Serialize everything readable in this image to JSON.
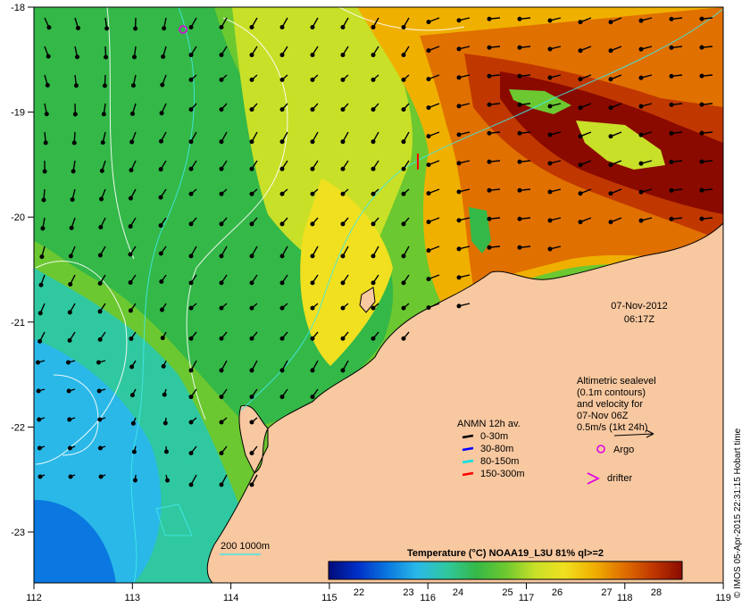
{
  "map": {
    "date": "07-Nov-2012",
    "time": "06:17Z",
    "lon_ticks": [
      "112",
      "113",
      "114",
      "115",
      "116",
      "117",
      "118",
      "119"
    ],
    "lat_ticks": [
      "-18",
      "-19",
      "-20",
      "-21",
      "-22",
      "-23"
    ],
    "altimetry_note": [
      "Altimetric sealevel",
      "(0.1m contours)",
      "and velocity for",
      "07-Nov 06Z",
      "0.5m/s (1kt 24h)"
    ],
    "argo_label": "Argo",
    "drifter_label": "drifter",
    "anmn_title": "ANMN 12h av.",
    "anmn_items": [
      {
        "label": "0-30m",
        "color": "#000000"
      },
      {
        "label": "30-80m",
        "color": "#0000ff"
      },
      {
        "label": "80-150m",
        "color": "#00e0e0"
      },
      {
        "label": "150-300m",
        "color": "#ff0000"
      }
    ],
    "bathy_label": "200  1000m",
    "colorbar_title": "Temperature (°C) NOAA19_L3U 81% ql>=2",
    "colorbar_ticks": [
      "22",
      "23",
      "24",
      "25",
      "26",
      "27",
      "28"
    ],
    "colorbar_colors": [
      "#000a7a",
      "#0030c8",
      "#0a78e0",
      "#2ab8e8",
      "#30c8a0",
      "#34b848",
      "#6cc830",
      "#c8e028",
      "#f0e020",
      "#f0b000",
      "#e07000",
      "#c03800",
      "#8a0a00"
    ],
    "credit": "© IMOS 05-Apr-2015 22:31:15 Hobart time",
    "land_color": "#f8c8a0"
  }
}
